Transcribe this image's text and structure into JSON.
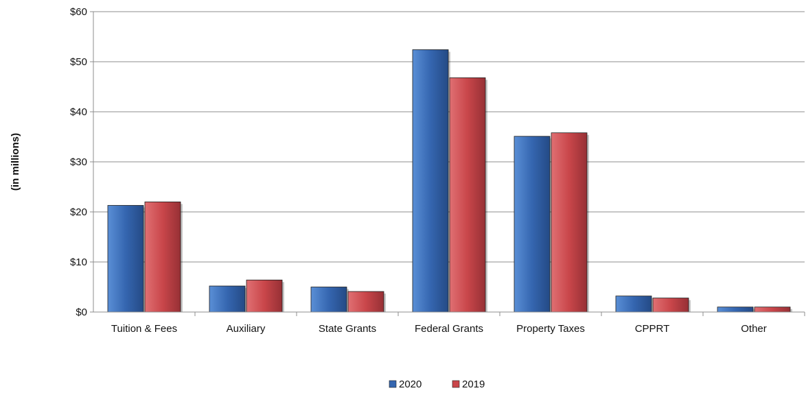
{
  "chart_data": {
    "type": "bar",
    "title": "",
    "xlabel": "",
    "ylabel": "(in millions)",
    "ylim": [
      0,
      60
    ],
    "yticks": [
      0,
      10,
      20,
      30,
      40,
      50,
      60
    ],
    "ytick_labels": [
      "$0",
      "$10",
      "$20",
      "$30",
      "$40",
      "$50",
      "$60"
    ],
    "grid": true,
    "legend_position": "bottom-center",
    "categories": [
      "Tuition & Fees",
      "Auxiliary",
      "State Grants",
      "Federal Grants",
      "Property Taxes",
      "CPPRT",
      "Other"
    ],
    "series": [
      {
        "name": "2020",
        "color": "#3566b0",
        "values": [
          21.3,
          5.2,
          5.0,
          52.4,
          35.1,
          3.2,
          1.0
        ]
      },
      {
        "name": "2019",
        "color": "#c9464a",
        "values": [
          22.0,
          6.4,
          4.1,
          46.8,
          35.8,
          2.8,
          1.0
        ]
      }
    ]
  }
}
